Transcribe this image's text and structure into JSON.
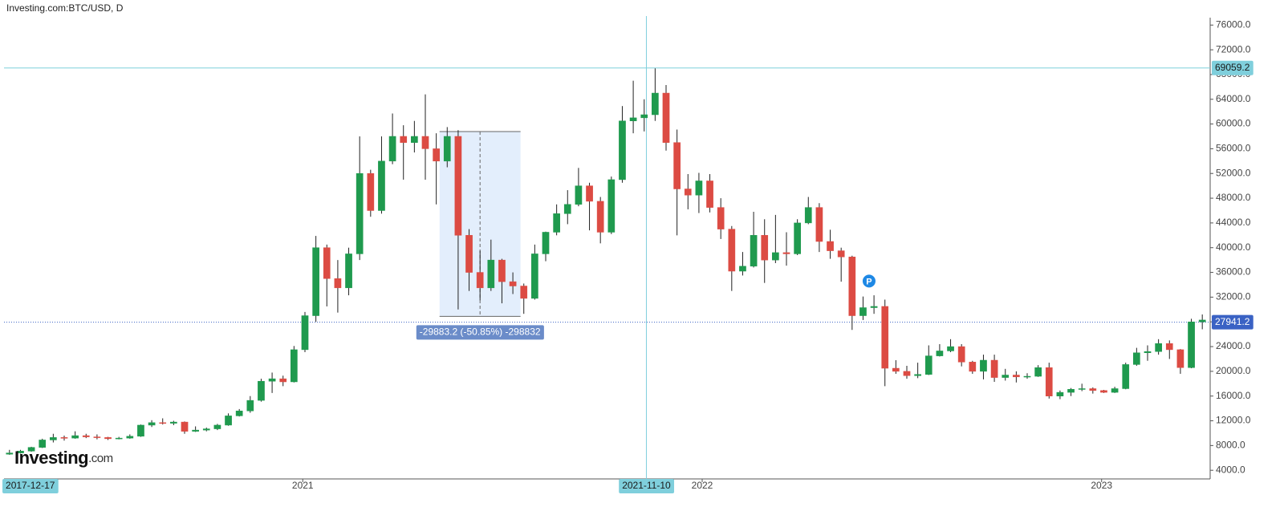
{
  "chart_data": {
    "type": "candlestick",
    "title": "Investing.com:BTC/USD, D",
    "logo": {
      "name": "Investing",
      "suffix": ".com"
    },
    "up_color": "#1f9a4e",
    "down_color": "#dc4b43",
    "xlim": [
      0,
      110
    ],
    "xticks": [
      {
        "value": 27.3,
        "label": "2021"
      },
      {
        "value": 63.8,
        "label": "2022"
      },
      {
        "value": 100.3,
        "label": "2023"
      }
    ],
    "ylim": [
      2600,
      77200
    ],
    "yticks": [
      {
        "value": 4000,
        "label": "4000.0"
      },
      {
        "value": 8000,
        "label": "8000.0"
      },
      {
        "value": 12000,
        "label": "12000.0"
      },
      {
        "value": 16000,
        "label": "16000.0"
      },
      {
        "value": 20000,
        "label": "20000.0"
      },
      {
        "value": 24000,
        "label": "24000.0"
      },
      {
        "value": 28000,
        "label": "28000.0"
      },
      {
        "value": 32000,
        "label": "32000.0"
      },
      {
        "value": 36000,
        "label": "36000.0"
      },
      {
        "value": 40000,
        "label": "40000.0"
      },
      {
        "value": 44000,
        "label": "44000.0"
      },
      {
        "value": 48000,
        "label": "48000.0"
      },
      {
        "value": 52000,
        "label": "52000.0"
      },
      {
        "value": 56000,
        "label": "56000.0"
      },
      {
        "value": 60000,
        "label": "60000.0"
      },
      {
        "value": 64000,
        "label": "64000.0"
      },
      {
        "value": 68000,
        "label": "68000.0"
      },
      {
        "value": 72000,
        "label": "72000.0"
      },
      {
        "value": 76000,
        "label": "76000.0"
      }
    ],
    "open": [
      6600,
      6800,
      7100,
      7700,
      8900,
      9300,
      9200,
      9600,
      9400,
      9300,
      9100,
      9200,
      9500,
      11300,
      11700,
      11600,
      11800,
      10300,
      10500,
      10700,
      11300,
      12800,
      13600,
      15300,
      18400,
      18800,
      18300,
      23500,
      29000,
      40000,
      35000,
      33500,
      39000,
      52000,
      46000,
      54000,
      58000,
      57000,
      58000,
      56000,
      54000,
      58000,
      42000,
      36000,
      33500,
      38000,
      34500,
      33800,
      31800,
      39000,
      42500,
      45500,
      47000,
      50000,
      47500,
      42500,
      51000,
      60500,
      61000,
      61500,
      65000,
      57000,
      49500,
      48500,
      50800,
      46500,
      43000,
      36200,
      37000,
      42000,
      38000,
      39200,
      39000,
      44000,
      46500,
      41000,
      39500,
      38500,
      29000,
      30300,
      30500,
      20500,
      20000,
      19300,
      19500,
      22500,
      23300,
      24000,
      21500,
      20000,
      21800,
      19000,
      19400,
      19100,
      19200,
      20600,
      16000,
      16600,
      17100,
      17200,
      16900,
      16600,
      17200,
      21100,
      23000,
      23200,
      24500,
      23500,
      20600,
      28000
    ],
    "high": [
      7300,
      7300,
      7800,
      9100,
      9900,
      9600,
      10300,
      9900,
      9800,
      9400,
      9400,
      9800,
      11400,
      12100,
      12400,
      12000,
      11900,
      11100,
      10900,
      11500,
      13200,
      13900,
      16000,
      18800,
      19800,
      19300,
      24100,
      29600,
      41900,
      40500,
      38000,
      40000,
      58000,
      52600,
      58000,
      61700,
      59800,
      60500,
      64800,
      58500,
      59500,
      59000,
      43000,
      39500,
      41300,
      38200,
      36000,
      34200,
      40500,
      42600,
      47000,
      49300,
      52900,
      50500,
      48200,
      51500,
      62900,
      67000,
      64000,
      69000,
      66300,
      59100,
      51900,
      52100,
      51900,
      48000,
      43500,
      39300,
      45800,
      44600,
      45300,
      42500,
      44600,
      48200,
      47200,
      42900,
      40000,
      38700,
      32100,
      32300,
      31600,
      21800,
      20900,
      21400,
      24200,
      24400,
      25200,
      24400,
      21700,
      22700,
      22700,
      20400,
      20000,
      19700,
      21000,
      21400,
      16900,
      17300,
      18000,
      17400,
      17000,
      17500,
      21400,
      23800,
      24200,
      25200,
      25000,
      23600,
      28500,
      29200
    ],
    "low": [
      6500,
      6700,
      7000,
      7600,
      8500,
      8800,
      9100,
      9200,
      9000,
      8900,
      9000,
      9100,
      9400,
      11000,
      11400,
      11300,
      9900,
      10200,
      10300,
      10500,
      11200,
      12700,
      13300,
      15100,
      16500,
      17600,
      18200,
      23100,
      28000,
      30500,
      29500,
      32300,
      38000,
      45000,
      45500,
      53500,
      51000,
      55400,
      51000,
      47000,
      53000,
      30000,
      33000,
      31500,
      33000,
      31000,
      32500,
      29300,
      31600,
      37800,
      42000,
      43800,
      46700,
      42800,
      40700,
      42200,
      50500,
      58500,
      58800,
      60500,
      55700,
      42000,
      46200,
      45600,
      45700,
      41400,
      33000,
      35500,
      36800,
      34300,
      37500,
      37100,
      38800,
      43800,
      39300,
      38200,
      34500,
      26700,
      28300,
      29300,
      17600,
      19600,
      18800,
      18900,
      19400,
      22400,
      23100,
      20800,
      19600,
      18700,
      18300,
      18500,
      18200,
      18800,
      19100,
      15600,
      15500,
      16000,
      16800,
      16400,
      16500,
      16500,
      17100,
      20900,
      21700,
      22700,
      22000,
      19600,
      20500,
      26800
    ],
    "close": [
      6800,
      7100,
      7700,
      8900,
      9300,
      9200,
      9600,
      9400,
      9300,
      9100,
      9200,
      9500,
      11300,
      11700,
      11600,
      11800,
      10300,
      10500,
      10700,
      11300,
      12800,
      13600,
      15300,
      18400,
      18800,
      18300,
      23500,
      29000,
      40000,
      35000,
      33500,
      39000,
      52000,
      46000,
      54000,
      58000,
      57000,
      58000,
      56000,
      54000,
      58000,
      42000,
      36000,
      33500,
      38000,
      34500,
      33800,
      31800,
      39000,
      42500,
      45500,
      47000,
      50000,
      47500,
      42500,
      51000,
      60500,
      61000,
      61500,
      65000,
      57000,
      49500,
      48500,
      50800,
      46500,
      43000,
      36200,
      37000,
      42000,
      38000,
      39200,
      39000,
      44000,
      46500,
      41000,
      39500,
      38500,
      29000,
      30300,
      30500,
      20500,
      20000,
      19300,
      19500,
      22500,
      23300,
      24000,
      21500,
      20000,
      21800,
      19000,
      19400,
      19100,
      19200,
      20600,
      16000,
      16600,
      17100,
      17200,
      16900,
      16600,
      17200,
      21100,
      23000,
      23200,
      24500,
      23500,
      20600,
      28000,
      28300
    ],
    "start_label": {
      "value": 2.4,
      "label": "2017-12-17"
    },
    "crosshair_x": {
      "value": 58.7,
      "label": "2021-11-10"
    },
    "crosshair_y": {
      "value": 69059.2,
      "label": "69059.2"
    },
    "last_price": {
      "value": 27941.2,
      "label": "27941.2"
    },
    "measure": {
      "x0": 39.8,
      "x1": 47.2,
      "top": 58776,
      "bottom": 28893,
      "label": "-29883.2 (-50.85%) -298832"
    },
    "marker": {
      "x": 79.05,
      "y": 34600,
      "label": "P"
    }
  }
}
